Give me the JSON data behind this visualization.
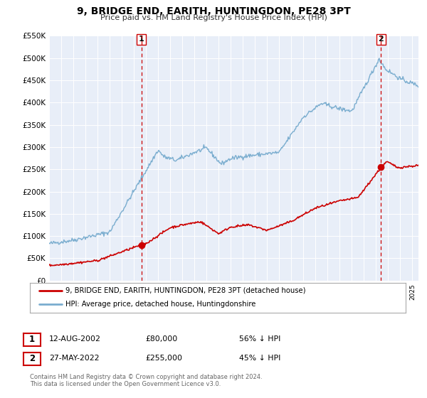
{
  "title": "9, BRIDGE END, EARITH, HUNTINGDON, PE28 3PT",
  "subtitle": "Price paid vs. HM Land Registry's House Price Index (HPI)",
  "legend_red": "9, BRIDGE END, EARITH, HUNTINGDON, PE28 3PT (detached house)",
  "legend_blue": "HPI: Average price, detached house, Huntingdonshire",
  "sale1_date": "12-AUG-2002",
  "sale1_price": "£80,000",
  "sale1_hpi": "56% ↓ HPI",
  "sale1_year": 2002.62,
  "sale1_value": 80000,
  "sale2_date": "27-MAY-2022",
  "sale2_price": "£255,000",
  "sale2_hpi": "45% ↓ HPI",
  "sale2_year": 2022.41,
  "sale2_value": 255000,
  "red_color": "#cc0000",
  "blue_color": "#7aadcf",
  "vline_color": "#cc0000",
  "background_chart": "#e8eef8",
  "grid_color": "#ffffff",
  "ylim": [
    0,
    550000
  ],
  "xlim_start": 1995.0,
  "xlim_end": 2025.5,
  "ylabel_ticks": [
    "£0",
    "£50K",
    "£100K",
    "£150K",
    "£200K",
    "£250K",
    "£300K",
    "£350K",
    "£400K",
    "£450K",
    "£500K",
    "£550K"
  ],
  "ytick_values": [
    0,
    50000,
    100000,
    150000,
    200000,
    250000,
    300000,
    350000,
    400000,
    450000,
    500000,
    550000
  ],
  "footer1": "Contains HM Land Registry data © Crown copyright and database right 2024.",
  "footer2": "This data is licensed under the Open Government Licence v3.0."
}
